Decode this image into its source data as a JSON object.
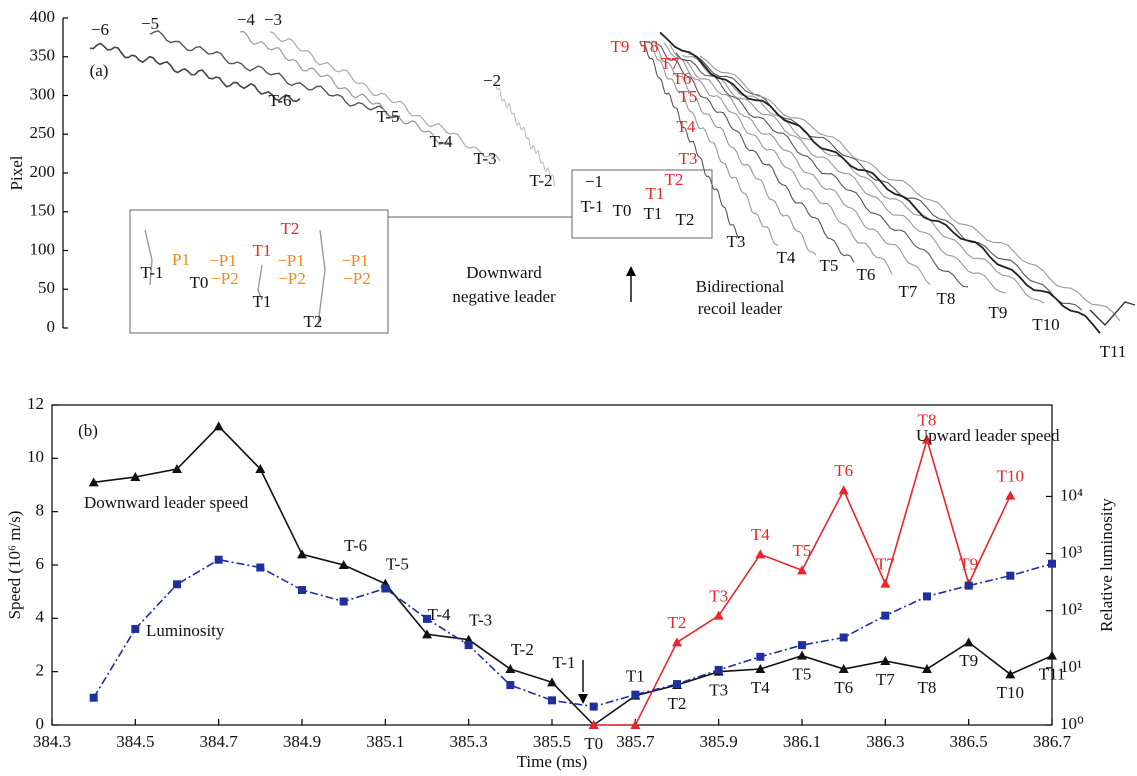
{
  "chart_data": [
    {
      "type": "image",
      "ylabel": "Pixel",
      "ylim": [
        0,
        400
      ],
      "yticks": [
        0,
        50,
        100,
        150,
        200,
        250,
        300,
        350,
        400
      ],
      "black_labels": [
        "−6",
        "−5",
        "−4",
        "−3",
        "−2",
        "(a)",
        "T-6",
        "T-5",
        "T-4",
        "T-3",
        "T-2",
        "−1",
        "T-1",
        "T0",
        "T1",
        "T2",
        "T3",
        "T4",
        "T5",
        "T6",
        "T7",
        "T8",
        "T9",
        "T10",
        "T11",
        "T-1",
        "T0",
        "T1",
        "T2",
        "Downward",
        "negative leader",
        "Bidirectional",
        "recoil leader"
      ],
      "red_labels": [
        "T9",
        "T8",
        "T7",
        "T6",
        "T5",
        "T4",
        "T3",
        "T2",
        "T1",
        "T1",
        "T2"
      ],
      "orange_labels": [
        "P1",
        "−P1",
        "−P2",
        "−P1",
        "−P2",
        "−P1",
        "−P2"
      ],
      "colors": {
        "black": "#111111",
        "red": "#e8262b",
        "orange": "#f08a1c"
      }
    },
    {
      "type": "line",
      "title": "(b)",
      "xlabel": "Time (ms)",
      "ylabel": "Speed (10⁶ m/s)",
      "y2label": "Relative luminosity",
      "x": [
        384.4,
        384.5,
        384.6,
        384.7,
        384.8,
        384.9,
        385.0,
        385.1,
        385.2,
        385.3,
        385.4,
        385.5,
        385.6,
        385.7,
        385.8,
        385.9,
        386.0,
        386.1,
        386.2,
        386.3,
        386.4,
        386.5,
        386.6,
        386.7
      ],
      "xlim": [
        384.3,
        386.7
      ],
      "xticks": [
        384.3,
        384.5,
        384.7,
        384.9,
        385.1,
        385.3,
        385.5,
        385.7,
        385.9,
        386.1,
        386.3,
        386.5,
        386.7
      ],
      "ylim": [
        0,
        12
      ],
      "yticks": [
        0,
        2,
        4,
        6,
        8,
        10,
        12
      ],
      "y2lim": [
        1,
        398107
      ],
      "y2scale": "log",
      "y2ticks": [
        {
          "value": 1,
          "label": "10⁰"
        },
        {
          "value": 10,
          "label": "10¹"
        },
        {
          "value": 100,
          "label": "10²"
        },
        {
          "value": 1000,
          "label": "10³"
        },
        {
          "value": 10000,
          "label": "10⁴"
        }
      ],
      "series": [
        {
          "name": "Downward leader speed",
          "color": "#111111",
          "marker": "triangle",
          "values": [
            9.1,
            9.3,
            9.6,
            11.2,
            9.6,
            6.4,
            6.0,
            5.3,
            3.4,
            3.2,
            2.1,
            1.6,
            0,
            1.1,
            1.5,
            2.0,
            2.1,
            2.6,
            2.1,
            2.4,
            2.1,
            3.1,
            1.9,
            2.6
          ],
          "labels": [
            null,
            null,
            null,
            null,
            null,
            null,
            "T-6",
            "T-5",
            "T-4",
            "T-3",
            "T-2",
            "T-1",
            "T0",
            "T1",
            "T2",
            "T3",
            "T4",
            "T5",
            "T6",
            "T7",
            "T8",
            "T9",
            "T10",
            "T11"
          ]
        },
        {
          "name": "Upward leader speed",
          "color": "#e8262b",
          "marker": "triangle",
          "values": [
            null,
            null,
            null,
            null,
            null,
            null,
            null,
            null,
            null,
            null,
            null,
            null,
            0,
            0,
            3.1,
            4.1,
            6.4,
            5.8,
            8.8,
            5.3,
            10.7,
            5.3,
            8.6,
            null
          ],
          "labels": [
            null,
            null,
            null,
            null,
            null,
            null,
            null,
            null,
            null,
            null,
            null,
            null,
            null,
            null,
            "T2",
            "T3",
            "T4",
            "T5",
            "T6",
            "T7",
            "T8",
            "T9",
            "T10",
            null
          ]
        },
        {
          "name": "Luminosity",
          "color": "#1f2f9e",
          "marker": "square",
          "axis": "y2",
          "dash": true,
          "values": [
            3,
            48,
            290,
            780,
            570,
            230,
            145,
            245,
            72,
            25,
            5,
            2.7,
            2.1,
            3.4,
            5.2,
            9.2,
            15.6,
            25,
            34,
            82,
            178,
            275,
            410,
            665
          ]
        }
      ]
    }
  ]
}
